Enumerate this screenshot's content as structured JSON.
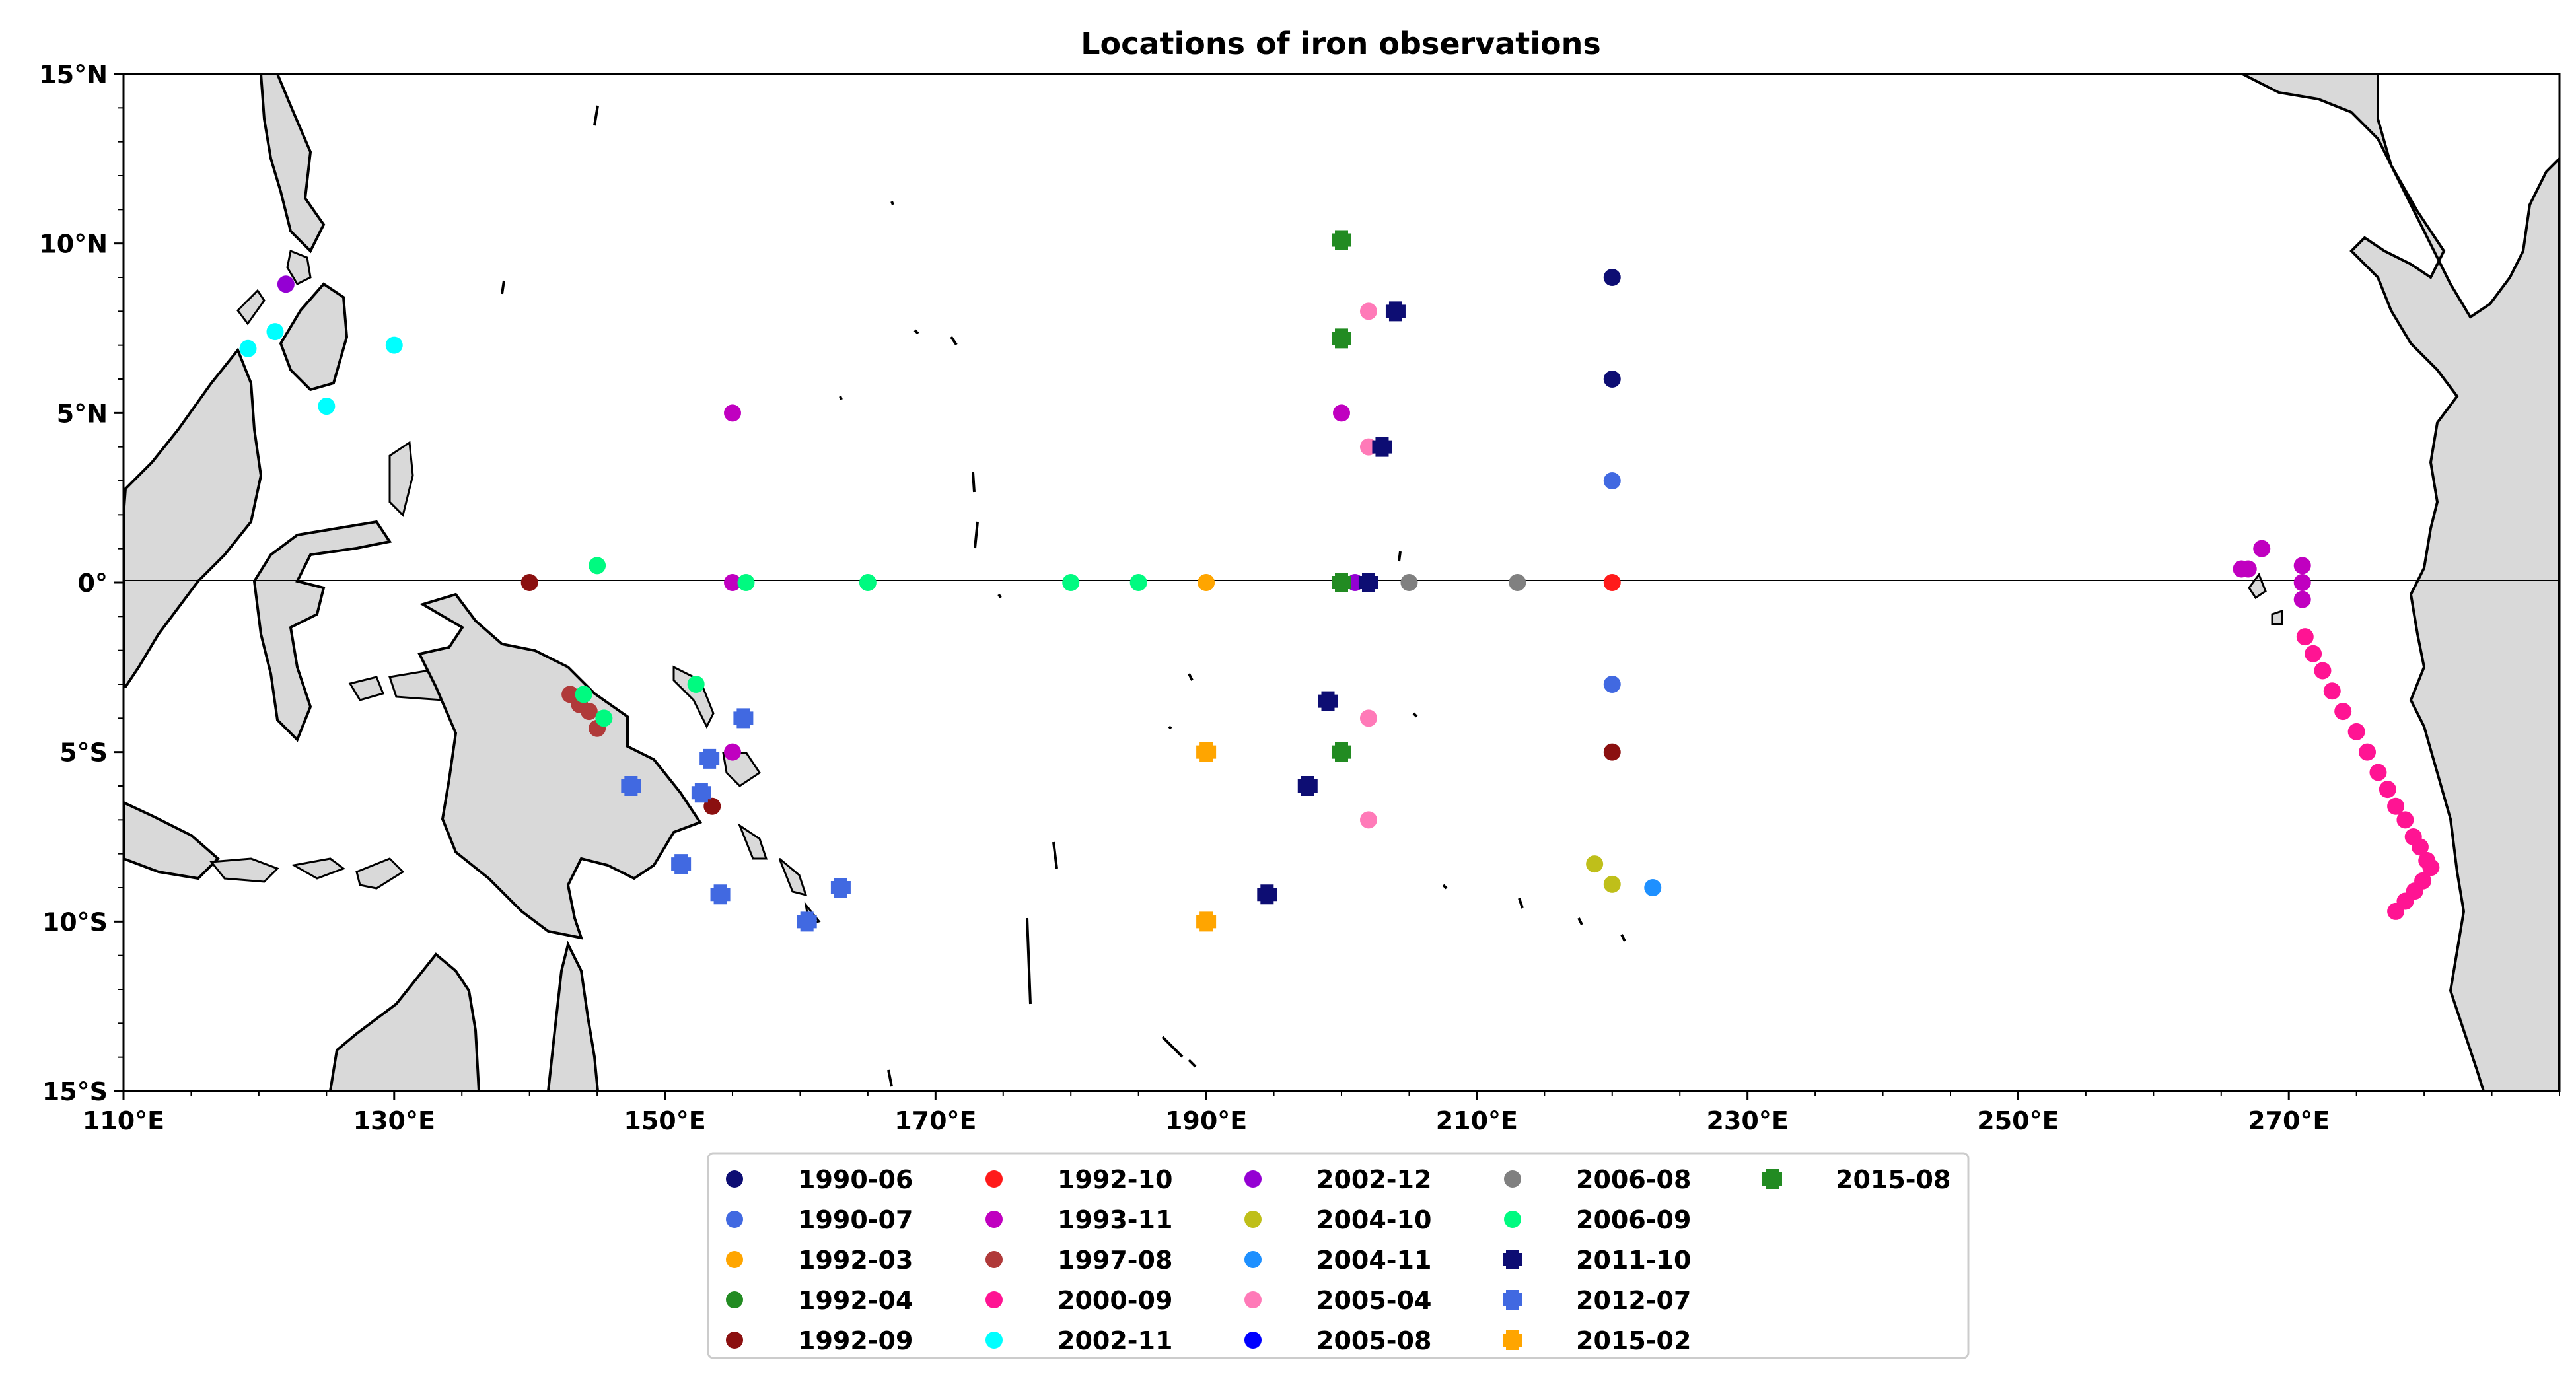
{
  "chart_data": {
    "type": "scatter",
    "title": "Locations of iron observations",
    "xlabel": "",
    "ylabel": "",
    "xlim": [
      110,
      290
    ],
    "ylim": [
      -15,
      15
    ],
    "x_ticks": [
      110,
      130,
      150,
      170,
      190,
      210,
      230,
      250,
      270
    ],
    "x_tick_labels": [
      "110°E",
      "130°E",
      "150°E",
      "170°E",
      "190°E",
      "210°E",
      "230°E",
      "250°E",
      "270°E"
    ],
    "y_ticks": [
      15,
      10,
      5,
      0,
      -5,
      -10,
      -15
    ],
    "y_tick_labels": [
      "15°N",
      "10°N",
      "5°N",
      "0°",
      "5°S",
      "10°S",
      "15°S"
    ],
    "grid": false,
    "equator_line": true,
    "legend_position": "bottom-center",
    "land_color": "#d9d9d9",
    "series": [
      {
        "name": "1990-06",
        "marker": "circle",
        "color": "#0d0d73",
        "x": [
          220,
          220
        ],
        "y": [
          9,
          6
        ]
      },
      {
        "name": "1990-07",
        "marker": "circle",
        "color": "#4169e1",
        "x": [
          220,
          220
        ],
        "y": [
          3,
          -3
        ]
      },
      {
        "name": "1992-03",
        "marker": "circle",
        "color": "#ffa500",
        "x": [
          190
        ],
        "y": [
          0
        ]
      },
      {
        "name": "1992-04",
        "marker": "circle",
        "color": "#228b22",
        "x": [
          200
        ],
        "y": [
          0
        ]
      },
      {
        "name": "1992-09",
        "marker": "circle",
        "color": "#8b1010",
        "x": [
          140,
          153.5,
          220
        ],
        "y": [
          0,
          -6.6,
          -5
        ]
      },
      {
        "name": "1992-10",
        "marker": "circle",
        "color": "#ff1a1a",
        "x": [
          220
        ],
        "y": [
          0
        ]
      },
      {
        "name": "1993-11",
        "marker": "circle",
        "color": "#c000c0",
        "x": [
          155,
          155,
          155,
          200,
          266.5,
          267,
          268,
          271,
          271,
          271
        ],
        "y": [
          5,
          0,
          -5,
          5,
          0.4,
          0.4,
          1,
          0.5,
          0,
          -0.5
        ]
      },
      {
        "name": "1997-08",
        "marker": "circle",
        "color": "#b03a3a",
        "x": [
          143,
          143.7,
          144.4,
          145
        ],
        "y": [
          -3.3,
          -3.6,
          -3.8,
          -4.3
        ]
      },
      {
        "name": "2000-09",
        "marker": "circle",
        "color": "#ff1493",
        "x": [
          271.2,
          271.8,
          272.5,
          273.2,
          274,
          275,
          275.8,
          276.6,
          277.3,
          277.9,
          278.6,
          279.2,
          279.7,
          280.2,
          280.5,
          279.9,
          279.3,
          278.6,
          277.9
        ],
        "y": [
          -1.6,
          -2.1,
          -2.6,
          -3.2,
          -3.8,
          -4.4,
          -5,
          -5.6,
          -6.1,
          -6.6,
          -7,
          -7.5,
          -7.8,
          -8.2,
          -8.4,
          -8.8,
          -9.1,
          -9.4,
          -9.7
        ]
      },
      {
        "name": "2002-11",
        "marker": "circle",
        "color": "#00ffff",
        "x": [
          119.2,
          121.2,
          125,
          130
        ],
        "y": [
          6.9,
          7.4,
          5.2,
          7
        ]
      },
      {
        "name": "2002-12",
        "marker": "circle",
        "color": "#9400d3",
        "x": [
          122,
          201
        ],
        "y": [
          8.8,
          0
        ]
      },
      {
        "name": "2004-10",
        "marker": "circle",
        "color": "#bfbf1a",
        "x": [
          218.7,
          220
        ],
        "y": [
          -8.3,
          -8.9
        ]
      },
      {
        "name": "2004-11",
        "marker": "circle",
        "color": "#1e90ff",
        "x": [
          223
        ],
        "y": [
          -9
        ]
      },
      {
        "name": "2005-04",
        "marker": "circle",
        "color": "#ff7ab8",
        "x": [
          202,
          202,
          202,
          202
        ],
        "y": [
          8,
          4,
          -4,
          -7
        ]
      },
      {
        "name": "2005-08",
        "marker": "circle",
        "color": "#0000ff",
        "x": [],
        "y": []
      },
      {
        "name": "2006-08",
        "marker": "circle",
        "color": "#808080",
        "x": [
          205,
          213
        ],
        "y": [
          0,
          0
        ]
      },
      {
        "name": "2006-09",
        "marker": "circle",
        "color": "#00fa80",
        "x": [
          145,
          156,
          165,
          180,
          185,
          144,
          145.5,
          152.3,
          147.5
        ],
        "y": [
          0.5,
          0,
          0,
          0,
          0,
          -3.3,
          -4,
          -3,
          -6
        ]
      },
      {
        "name": "2011-10",
        "marker": "plus",
        "color": "#0d0d73",
        "x": [
          204,
          203,
          202,
          199,
          197.5,
          194.5
        ],
        "y": [
          8,
          4,
          0,
          -3.5,
          -6,
          -9.2
        ]
      },
      {
        "name": "2012-07",
        "marker": "plus",
        "color": "#4169e1",
        "x": [
          155.8,
          153.3,
          152.7,
          147.5,
          151.2,
          154.1,
          160.5,
          163
        ],
        "y": [
          -4,
          -5.2,
          -6.2,
          -6,
          -8.3,
          -9.2,
          -10,
          -9
        ]
      },
      {
        "name": "2015-02",
        "marker": "plus",
        "color": "#ffa500",
        "x": [
          190,
          190
        ],
        "y": [
          -5,
          -10
        ]
      },
      {
        "name": "2015-08",
        "marker": "plus",
        "color": "#228b22",
        "x": [
          200,
          200,
          200,
          200
        ],
        "y": [
          10.1,
          7.2,
          0,
          -5
        ]
      }
    ]
  }
}
